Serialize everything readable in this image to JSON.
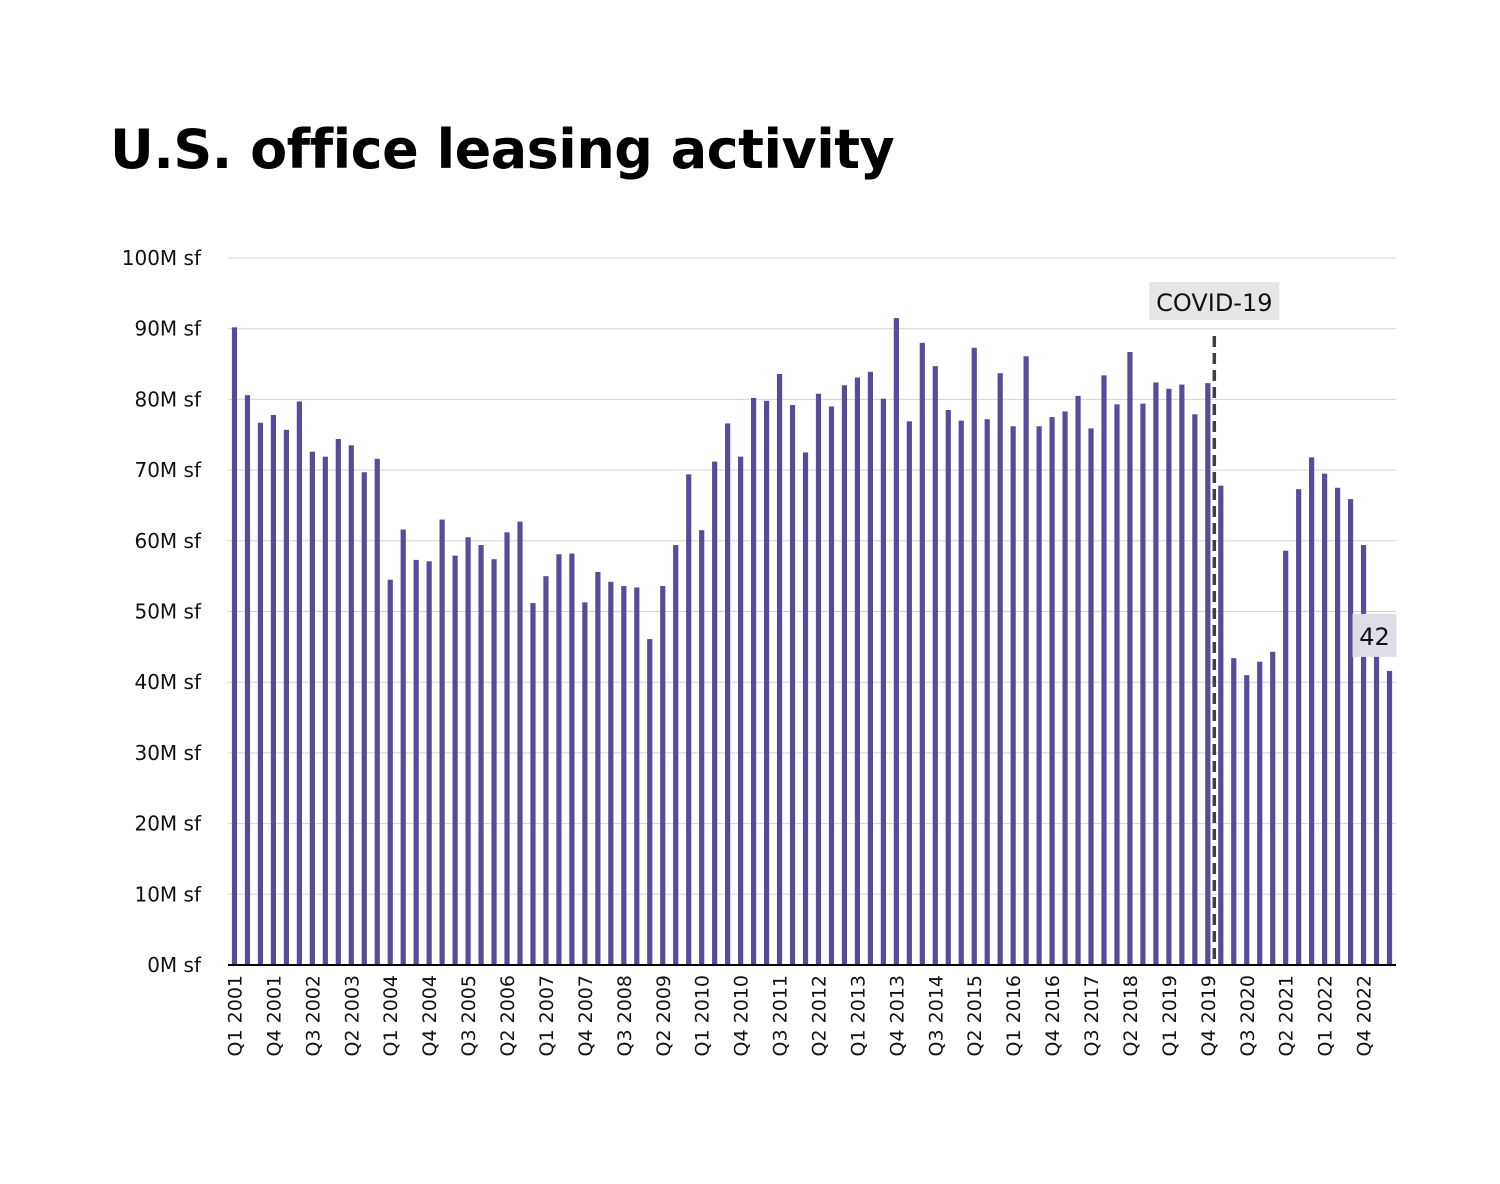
{
  "chart_data": {
    "type": "bar",
    "title": "U.S. office leasing activity",
    "xlabel": "",
    "ylabel": "",
    "ylim": [
      0,
      100
    ],
    "y_ticks": [
      "0M sf",
      "10M sf",
      "20M sf",
      "30M sf",
      "40M sf",
      "50M sf",
      "60M sf",
      "70M sf",
      "80M sf",
      "90M sf",
      "100M sf"
    ],
    "grid": true,
    "x_tick_labels": [
      "Q1 2001",
      "Q4 2001",
      "Q3 2002",
      "Q2 2003",
      "Q1 2004",
      "Q4 2004",
      "Q3 2005",
      "Q2 2006",
      "Q1 2007",
      "Q4 2007",
      "Q3 2008",
      "Q2 2009",
      "Q1 2010",
      "Q4 2010",
      "Q3 2011",
      "Q2 2012",
      "Q1 2013",
      "Q4 2013",
      "Q3 2014",
      "Q2 2015",
      "Q1 2016",
      "Q4 2016",
      "Q3 2017",
      "Q2 2018",
      "Q1 2019",
      "Q4 2019",
      "Q3 2020",
      "Q2 2021",
      "Q1 2022",
      "Q4 2022"
    ],
    "first_quarter": "Q1 2001",
    "bar_color": "#574b9b",
    "series": [
      {
        "values": [
          90.2,
          80.6,
          76.7,
          77.8,
          75.7,
          79.7,
          72.6,
          71.9,
          74.4,
          73.5,
          69.7,
          71.6,
          54.5,
          61.6,
          57.3,
          57.1,
          63.0,
          57.9,
          60.5,
          59.4,
          57.4,
          61.2,
          62.7,
          51.2,
          55.0,
          58.1,
          58.2,
          51.3,
          55.6,
          54.2,
          53.6,
          53.4,
          46.1,
          53.6,
          59.4,
          69.4,
          61.5,
          71.2,
          76.6,
          71.9,
          80.2,
          79.8,
          83.6,
          79.2,
          72.5,
          80.8,
          79.0,
          82.0,
          83.1,
          83.9,
          80.1,
          91.5,
          76.9,
          88.0,
          84.7,
          78.5,
          77.0,
          87.3,
          77.2,
          83.7,
          76.2,
          86.1,
          76.2,
          77.5,
          78.3,
          80.5,
          75.9,
          83.4,
          79.3,
          86.7,
          79.4,
          82.4,
          81.5,
          82.1,
          77.9,
          82.3,
          67.8,
          43.4,
          41.0,
          42.9,
          44.3,
          58.6,
          67.3,
          71.8,
          69.5,
          67.5,
          65.9,
          59.4,
          46.4,
          41.6
        ]
      }
    ],
    "annotations": {
      "covid_label": "COVID-19",
      "covid_after_quarter": "Q4 2019",
      "last_value_label": "42",
      "label_box_color": "#e6e6e6",
      "value_box_color": "#dedde8",
      "line_color": "#404040"
    }
  }
}
